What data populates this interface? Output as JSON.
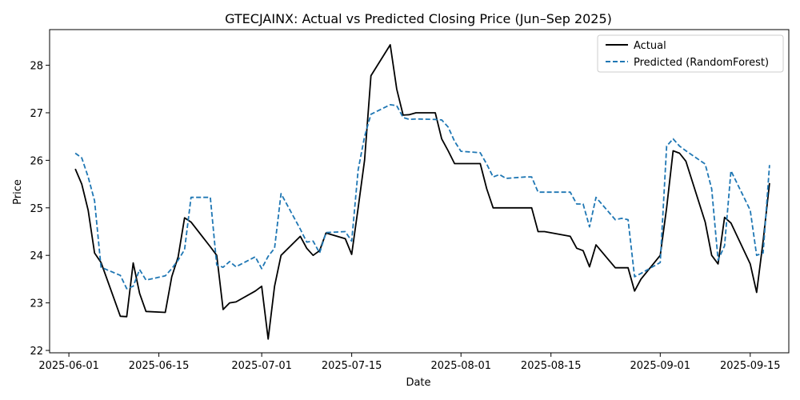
{
  "chart_data": {
    "type": "line",
    "title": "GTECJAINX: Actual vs Predicted Closing Price (Jun–Sep 2025)",
    "xlabel": "Date",
    "ylabel": "Price",
    "xlim": [
      "2025-05-29",
      "2025-09-21"
    ],
    "ylim": [
      21.95,
      28.75
    ],
    "x_ticks": [
      {
        "date": "2025-06-01",
        "label": "2025-06-01"
      },
      {
        "date": "2025-06-15",
        "label": "2025-06-15"
      },
      {
        "date": "2025-07-01",
        "label": "2025-07-01"
      },
      {
        "date": "2025-07-15",
        "label": "2025-07-15"
      },
      {
        "date": "2025-08-01",
        "label": "2025-08-01"
      },
      {
        "date": "2025-08-15",
        "label": "2025-08-15"
      },
      {
        "date": "2025-09-01",
        "label": "2025-09-01"
      },
      {
        "date": "2025-09-15",
        "label": "2025-09-15"
      }
    ],
    "y_ticks": [
      22,
      23,
      24,
      25,
      26,
      27,
      28
    ],
    "grid": false,
    "legend_position": "top-right",
    "series": [
      {
        "name": "Actual",
        "color": "#000000",
        "style": "solid",
        "x": [
          "2025-06-02",
          "2025-06-03",
          "2025-06-04",
          "2025-06-05",
          "2025-06-06",
          "2025-06-09",
          "2025-06-10",
          "2025-06-11",
          "2025-06-12",
          "2025-06-13",
          "2025-06-16",
          "2025-06-17",
          "2025-06-18",
          "2025-06-19",
          "2025-06-20",
          "2025-06-23",
          "2025-06-24",
          "2025-06-25",
          "2025-06-26",
          "2025-06-27",
          "2025-06-30",
          "2025-07-01",
          "2025-07-02",
          "2025-07-03",
          "2025-07-04",
          "2025-07-07",
          "2025-07-08",
          "2025-07-09",
          "2025-07-10",
          "2025-07-11",
          "2025-07-14",
          "2025-07-15",
          "2025-07-16",
          "2025-07-17",
          "2025-07-18",
          "2025-07-21",
          "2025-07-22",
          "2025-07-23",
          "2025-07-24",
          "2025-07-25",
          "2025-07-28",
          "2025-07-29",
          "2025-07-30",
          "2025-07-31",
          "2025-08-01",
          "2025-08-04",
          "2025-08-05",
          "2025-08-06",
          "2025-08-07",
          "2025-08-08",
          "2025-08-11",
          "2025-08-12",
          "2025-08-13",
          "2025-08-14",
          "2025-08-18",
          "2025-08-19",
          "2025-08-20",
          "2025-08-21",
          "2025-08-22",
          "2025-08-25",
          "2025-08-26",
          "2025-08-27",
          "2025-08-28",
          "2025-08-29",
          "2025-09-01",
          "2025-09-02",
          "2025-09-03",
          "2025-09-04",
          "2025-09-05",
          "2025-09-08",
          "2025-09-09",
          "2025-09-10",
          "2025-09-11",
          "2025-09-12",
          "2025-09-15",
          "2025-09-16",
          "2025-09-17",
          "2025-09-18"
        ],
        "y": [
          25.82,
          25.5,
          24.95,
          24.05,
          23.85,
          22.72,
          22.71,
          23.84,
          23.2,
          22.82,
          22.8,
          23.55,
          23.97,
          24.79,
          24.7,
          24.18,
          24.0,
          22.86,
          23.0,
          23.02,
          23.25,
          23.35,
          22.24,
          23.35,
          24.0,
          24.4,
          24.15,
          24.0,
          24.1,
          24.47,
          24.35,
          24.02,
          25.0,
          26.0,
          27.78,
          28.43,
          27.5,
          26.95,
          26.96,
          27.0,
          27.0,
          26.45,
          26.2,
          25.93,
          25.93,
          25.93,
          25.4,
          25.0,
          25.0,
          25.0,
          25.0,
          25.0,
          24.5,
          24.5,
          24.4,
          24.15,
          24.1,
          23.76,
          24.22,
          23.74,
          23.74,
          23.74,
          23.25,
          23.5,
          24.0,
          25.0,
          26.2,
          26.15,
          25.98,
          24.7,
          24.0,
          23.82,
          24.8,
          24.68,
          23.82,
          23.22,
          24.3,
          25.52
        ]
      },
      {
        "name": "Predicted (RandomForest)",
        "color": "#1f77b4",
        "style": "dashed",
        "x": [
          "2025-06-02",
          "2025-06-03",
          "2025-06-04",
          "2025-06-05",
          "2025-06-06",
          "2025-06-09",
          "2025-06-10",
          "2025-06-11",
          "2025-06-12",
          "2025-06-13",
          "2025-06-16",
          "2025-06-17",
          "2025-06-18",
          "2025-06-19",
          "2025-06-20",
          "2025-06-23",
          "2025-06-24",
          "2025-06-25",
          "2025-06-26",
          "2025-06-27",
          "2025-06-30",
          "2025-07-01",
          "2025-07-02",
          "2025-07-03",
          "2025-07-04",
          "2025-07-07",
          "2025-07-08",
          "2025-07-09",
          "2025-07-10",
          "2025-07-11",
          "2025-07-14",
          "2025-07-15",
          "2025-07-16",
          "2025-07-17",
          "2025-07-18",
          "2025-07-21",
          "2025-07-22",
          "2025-07-23",
          "2025-07-24",
          "2025-07-25",
          "2025-07-28",
          "2025-07-29",
          "2025-07-30",
          "2025-07-31",
          "2025-08-01",
          "2025-08-04",
          "2025-08-05",
          "2025-08-06",
          "2025-08-07",
          "2025-08-08",
          "2025-08-11",
          "2025-08-12",
          "2025-08-13",
          "2025-08-14",
          "2025-08-18",
          "2025-08-19",
          "2025-08-20",
          "2025-08-21",
          "2025-08-22",
          "2025-08-25",
          "2025-08-26",
          "2025-08-27",
          "2025-08-28",
          "2025-08-29",
          "2025-09-01",
          "2025-09-02",
          "2025-09-03",
          "2025-09-04",
          "2025-09-05",
          "2025-09-08",
          "2025-09-09",
          "2025-09-10",
          "2025-09-11",
          "2025-09-12",
          "2025-09-15",
          "2025-09-16",
          "2025-09-17",
          "2025-09-18"
        ],
        "y": [
          26.15,
          26.05,
          25.65,
          25.15,
          23.75,
          23.58,
          23.3,
          23.35,
          23.7,
          23.48,
          23.57,
          23.72,
          23.9,
          24.12,
          25.22,
          25.22,
          23.8,
          23.75,
          23.87,
          23.76,
          23.97,
          23.72,
          23.98,
          24.15,
          25.3,
          24.55,
          24.28,
          24.3,
          24.05,
          24.48,
          24.5,
          24.3,
          25.8,
          26.5,
          26.97,
          27.17,
          27.15,
          26.9,
          26.86,
          26.87,
          26.86,
          26.85,
          26.7,
          26.4,
          26.19,
          26.16,
          25.92,
          25.65,
          25.7,
          25.62,
          25.65,
          25.65,
          25.33,
          25.33,
          25.33,
          25.08,
          25.08,
          24.6,
          25.22,
          24.75,
          24.78,
          24.75,
          23.55,
          23.62,
          23.85,
          26.3,
          26.45,
          26.3,
          26.2,
          25.92,
          25.4,
          23.9,
          24.2,
          25.78,
          24.95,
          24.0,
          24.05,
          25.9
        ]
      }
    ]
  }
}
